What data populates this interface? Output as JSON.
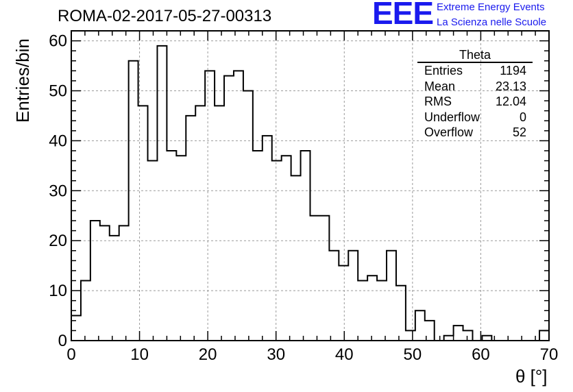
{
  "header": {
    "title": "ROMA-02-2017-05-27-00313",
    "logo_text": "EEE",
    "logo_line1": "Extreme Energy Events",
    "logo_line2": "La Scienza nelle Scuole"
  },
  "stats_box": {
    "title": "Theta",
    "rows": [
      {
        "label": "Entries",
        "value": "1194"
      },
      {
        "label": "Mean",
        "value": "23.13"
      },
      {
        "label": "RMS",
        "value": "12.04"
      },
      {
        "label": "Underflow",
        "value": "0"
      },
      {
        "label": "Overflow",
        "value": "52"
      }
    ]
  },
  "colors": {
    "logo": "#1a1aee",
    "histogram": "#000000",
    "grid": "#999999"
  },
  "chart_data": {
    "type": "bar",
    "style": "step-histogram",
    "title": "ROMA-02-2017-05-27-00313",
    "xlabel": "θ [°]",
    "ylabel": "Entries/bin",
    "xlim": [
      0,
      70
    ],
    "ylim": [
      0,
      62
    ],
    "grid": true,
    "bin_width": 1.4,
    "x_ticks": [
      "0",
      "10",
      "20",
      "30",
      "40",
      "50",
      "60",
      "70"
    ],
    "y_ticks": [
      "0",
      "10",
      "20",
      "30",
      "40",
      "50",
      "60"
    ],
    "values": [
      5,
      12,
      24,
      23,
      21,
      23,
      56,
      47,
      36,
      59,
      38,
      37,
      45,
      47,
      54,
      47,
      53,
      54,
      50,
      38,
      41,
      36,
      37,
      33,
      38,
      25,
      25,
      18,
      15,
      18,
      12,
      13,
      12,
      18,
      11,
      2,
      6,
      4,
      0,
      1,
      3,
      2,
      0,
      1,
      0,
      0,
      0,
      0,
      0,
      2
    ]
  }
}
